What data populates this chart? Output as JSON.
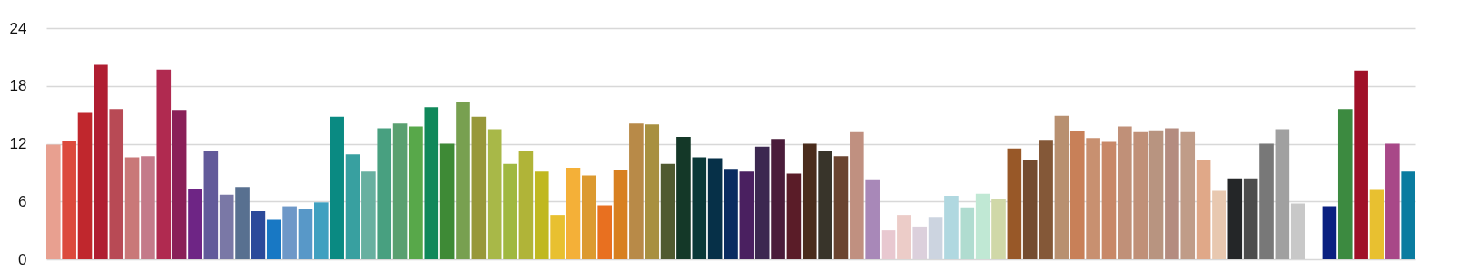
{
  "chart_data": {
    "type": "bar",
    "categories": [
      null,
      null,
      null,
      null,
      null,
      null,
      null,
      null,
      null,
      null,
      null,
      null,
      null,
      null,
      null,
      null,
      null,
      null,
      null,
      null,
      null,
      null,
      null,
      null,
      null,
      null,
      null,
      null,
      null,
      null,
      null,
      null,
      null,
      null,
      null,
      null,
      null,
      null,
      null,
      null,
      null,
      null,
      null,
      null,
      null,
      null,
      null,
      null,
      null,
      null,
      null,
      null,
      null,
      null,
      null,
      null,
      null,
      null,
      null,
      null,
      null,
      null,
      null,
      null,
      null,
      null,
      null,
      null,
      null,
      null,
      null,
      null,
      null,
      null,
      null,
      null,
      null,
      null,
      null,
      null,
      null,
      null,
      null,
      null,
      null,
      null,
      null
    ],
    "values": [
      11.9,
      12.3,
      15.2,
      20.2,
      15.6,
      10.6,
      10.7,
      19.7,
      15.5,
      7.3,
      11.2,
      6.7,
      7.5,
      5.0,
      4.1,
      5.5,
      5.2,
      5.9,
      14.8,
      10.9,
      9.1,
      13.6,
      14.1,
      13.8,
      15.8,
      12.0,
      16.3,
      14.8,
      13.5,
      9.9,
      11.3,
      9.1,
      4.6,
      9.5,
      8.7,
      5.6,
      9.3,
      14.1,
      14.0,
      9.9,
      12.7,
      10.6,
      10.5,
      9.4,
      9.1,
      11.7,
      12.5,
      8.9,
      12.0,
      11.2,
      10.7,
      13.2,
      8.3,
      3.0,
      4.6,
      3.4,
      4.4,
      6.6,
      5.4,
      6.8,
      6.3,
      11.5,
      10.3,
      12.4,
      14.9,
      13.3,
      12.6,
      12.2,
      13.8,
      13.2,
      13.4,
      13.6,
      13.2,
      10.3,
      7.1,
      8.4,
      8.4,
      12.0,
      13.5,
      5.8,
      null,
      5.5,
      15.6,
      19.6,
      7.2,
      12.0,
      9.1
    ],
    "colors": [
      "#e8a090",
      "#dc4a3c",
      "#c0272d",
      "#b01e32",
      "#b84a55",
      "#c97878",
      "#c47a8a",
      "#b02a50",
      "#8a2058",
      "#6e2585",
      "#625a9a",
      "#7a78a6",
      "#587090",
      "#2c4a9a",
      "#1878c4",
      "#6e98c8",
      "#5898c8",
      "#40a0c0",
      "#0a8a82",
      "#38a0a0",
      "#68b0a0",
      "#48a080",
      "#5aa070",
      "#58a84a",
      "#10885a",
      "#3e8a36",
      "#78a050",
      "#98983a",
      "#a8b848",
      "#a0b840",
      "#b0b438",
      "#c0b820",
      "#e8c030",
      "#f4b038",
      "#dc9a30",
      "#e87020",
      "#d88020",
      "#b88a48",
      "#a89040",
      "#505a30",
      "#143828",
      "#0a3838",
      "#063048",
      "#0a2c60",
      "#4a2060",
      "#3c2850",
      "#4a1c3a",
      "#5a1c28",
      "#4a2c1c",
      "#38342a",
      "#6a4430",
      "#c09080",
      "#a888b8",
      "#e8c8d0",
      "#ecccc8",
      "#dcd0dc",
      "#ccd4e0",
      "#b0d8e0",
      "#b0dcd0",
      "#c0e8d4",
      "#d0d8a8",
      "#985828",
      "#744c30",
      "#845838",
      "#b89070",
      "#c88058",
      "#c89070",
      "#c88868",
      "#c09078",
      "#c09078",
      "#b89480",
      "#b48c80",
      "#c09c88",
      "#e0a888",
      "#e8c8b0",
      "#242628",
      "#4c4c4c",
      "#787878",
      "#a0a0a0",
      "#c8c8c8",
      "#ffffff",
      "#0a2080",
      "#3c8a40",
      "#a01028",
      "#e8c030",
      "#a84888",
      "#0a7ca0"
    ],
    "ylim": [
      0,
      24
    ],
    "yticks": [
      0,
      6,
      12,
      18,
      24
    ],
    "grid": "y",
    "tick_labels": "y"
  }
}
